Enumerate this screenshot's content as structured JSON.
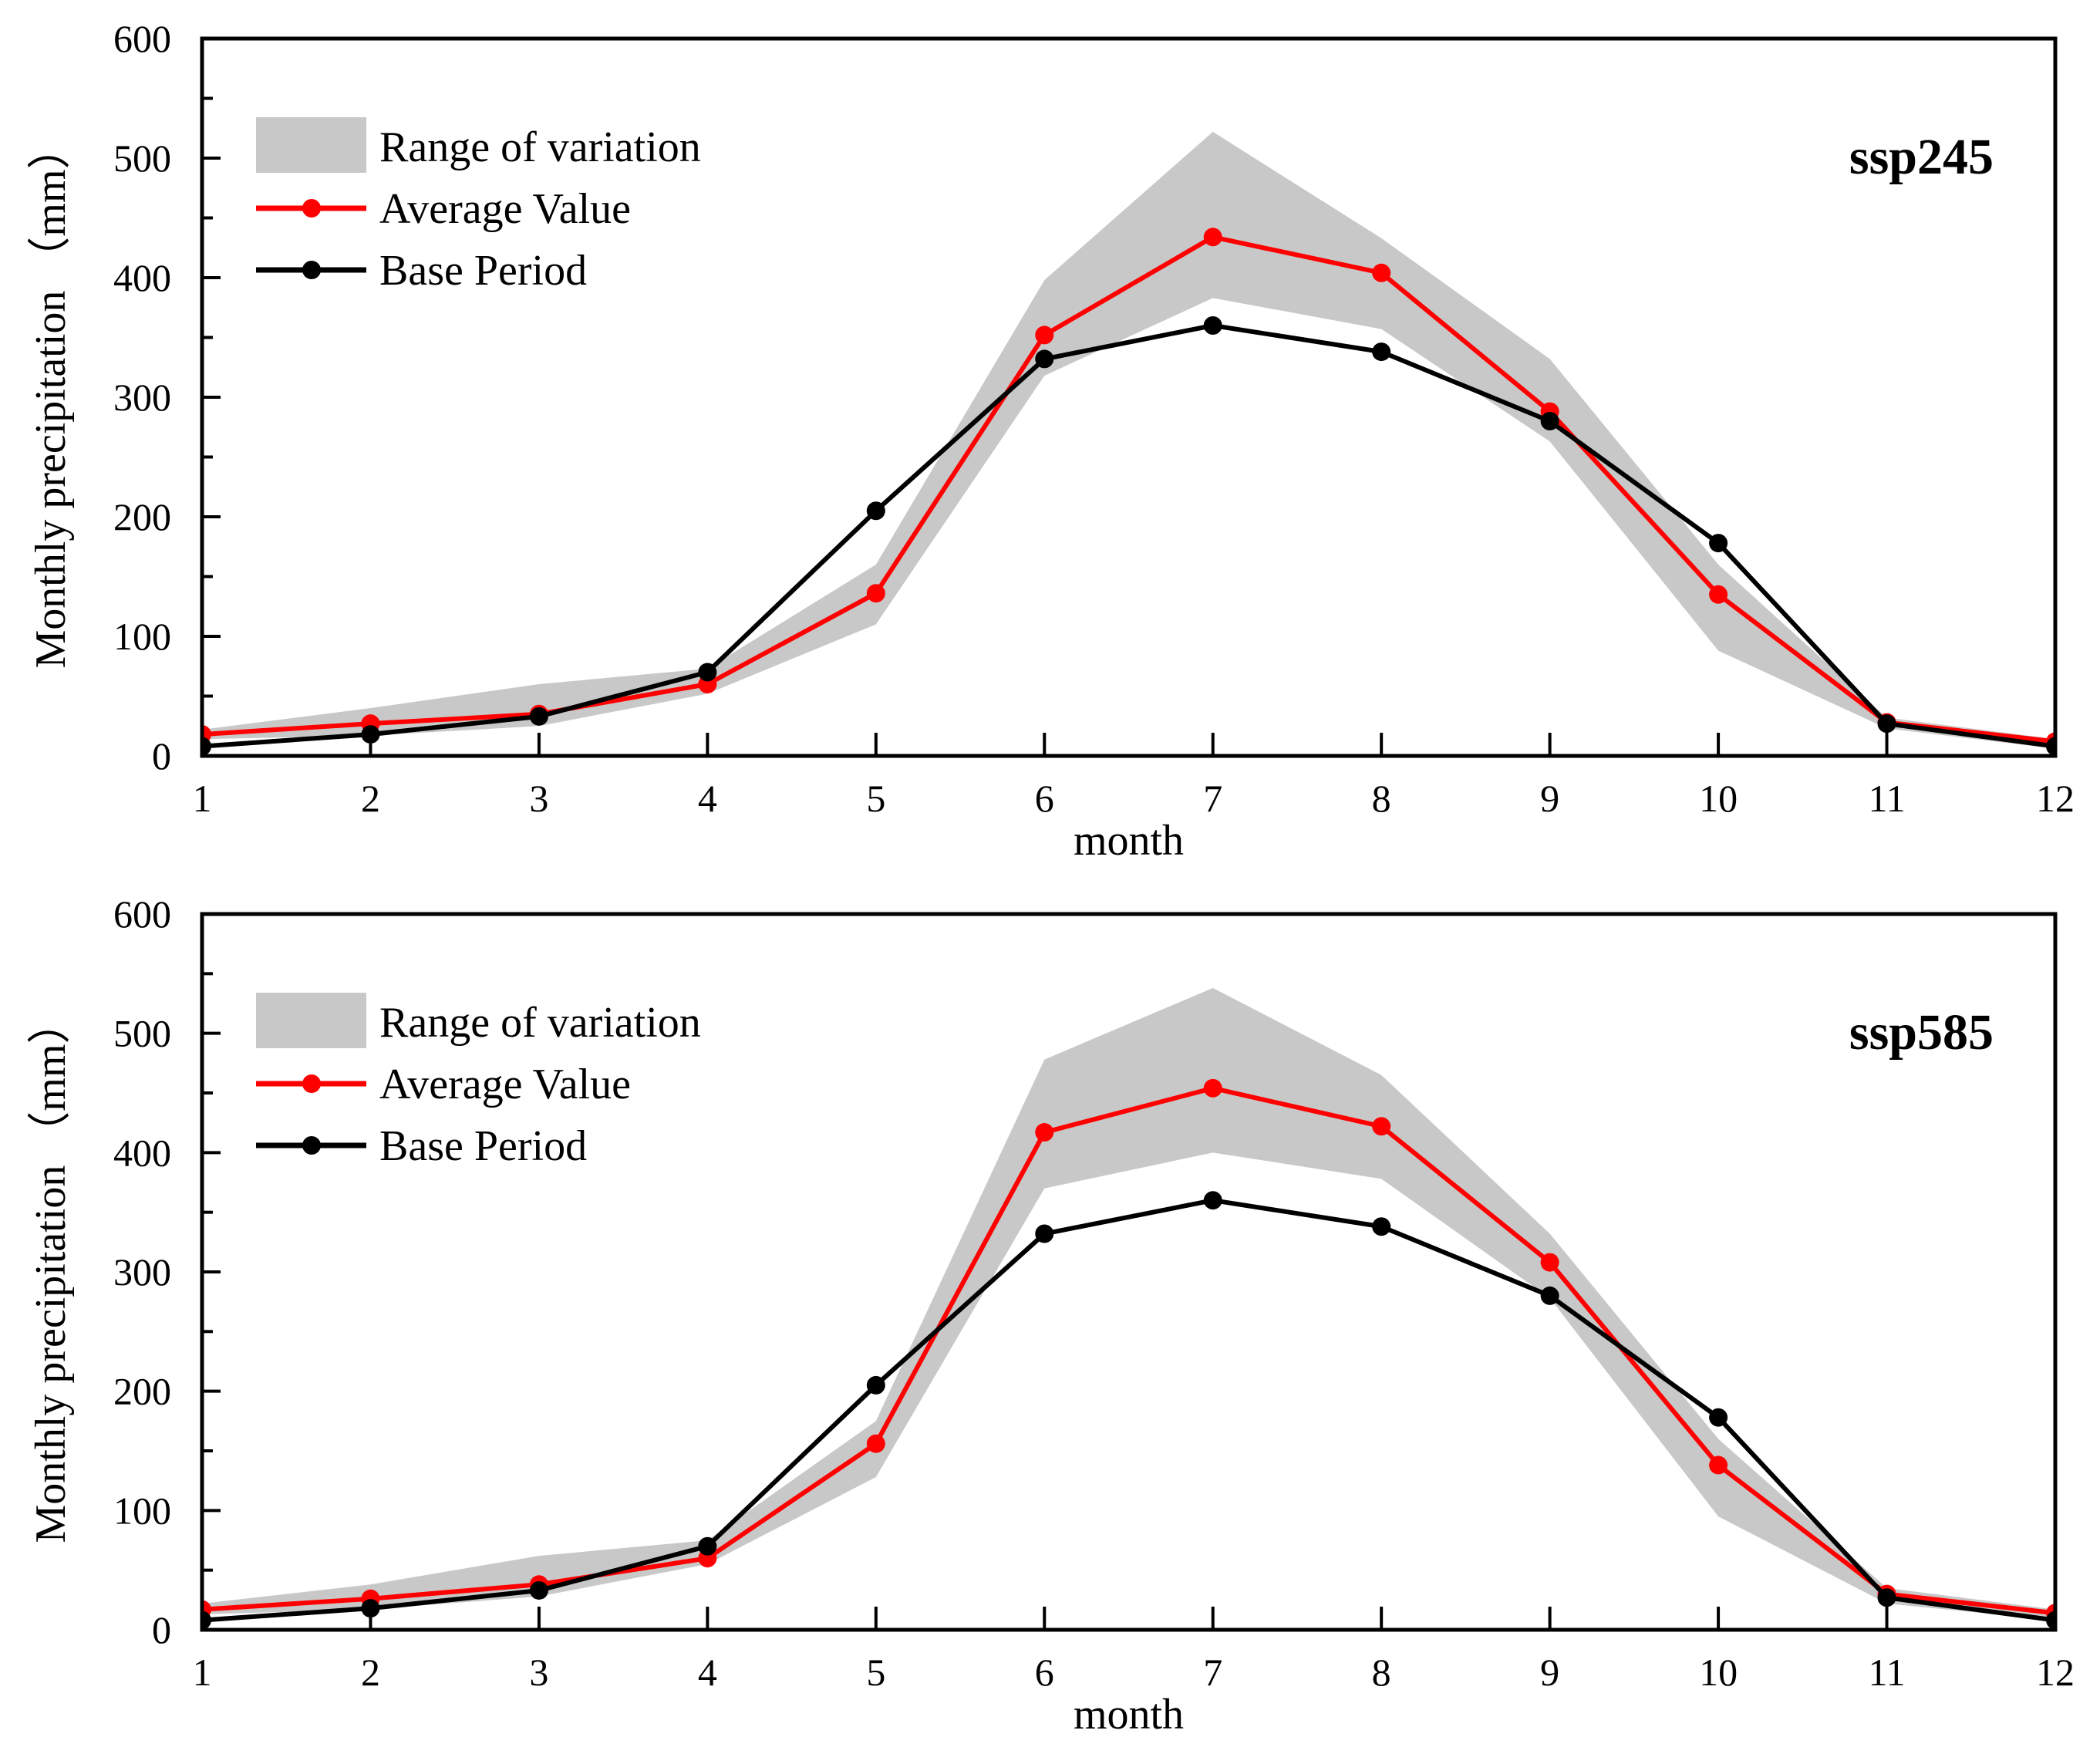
{
  "colors": {
    "band": "#c8c8c8",
    "average": "#ff0000",
    "base": "#000000",
    "frame": "#000000"
  },
  "chart_data": [
    {
      "type": "line",
      "panel_label": "ssp245",
      "xlabel": "month",
      "ylabel": "Monthly precipitation （mm）",
      "xlim": [
        1,
        12
      ],
      "ylim": [
        0,
        600
      ],
      "x_ticks": [
        "1",
        "2",
        "3",
        "4",
        "5",
        "6",
        "7",
        "8",
        "9",
        "10",
        "11",
        "12"
      ],
      "y_ticks": [
        "0",
        "100",
        "200",
        "300",
        "400",
        "500",
        "600"
      ],
      "legend": [
        "Range of variation",
        "Average Value",
        "Base Period"
      ],
      "legend_position": "top-left",
      "grid": false,
      "x": [
        1,
        2,
        3,
        4,
        5,
        6,
        7,
        8,
        9,
        10,
        11,
        12
      ],
      "band": {
        "name": "Range of variation",
        "upper": [
          22,
          40,
          60,
          73,
          160,
          398,
          522,
          433,
          332,
          160,
          32,
          14
        ],
        "lower": [
          14,
          17,
          25,
          52,
          110,
          318,
          383,
          357,
          263,
          88,
          23,
          6
        ]
      },
      "series": [
        {
          "name": "Average Value",
          "values": [
            18,
            27,
            35,
            60,
            136,
            352,
            434,
            404,
            288,
            135,
            28,
            12
          ]
        },
        {
          "name": "Base Period",
          "values": [
            8,
            18,
            33,
            70,
            205,
            332,
            360,
            338,
            280,
            178,
            27,
            8
          ]
        }
      ]
    },
    {
      "type": "line",
      "panel_label": "ssp585",
      "xlabel": "month",
      "ylabel": "Monthly precipitation （mm）",
      "xlim": [
        1,
        12
      ],
      "ylim": [
        0,
        600
      ],
      "x_ticks": [
        "1",
        "2",
        "3",
        "4",
        "5",
        "6",
        "7",
        "8",
        "9",
        "10",
        "11",
        "12"
      ],
      "y_ticks": [
        "0",
        "100",
        "200",
        "300",
        "400",
        "500",
        "600"
      ],
      "legend": [
        "Range of variation",
        "Average Value",
        "Base Period"
      ],
      "legend_position": "top-left",
      "grid": false,
      "x": [
        1,
        2,
        3,
        4,
        5,
        6,
        7,
        8,
        9,
        10,
        11,
        12
      ],
      "band": {
        "name": "Range of variation",
        "upper": [
          22,
          38,
          62,
          75,
          175,
          478,
          538,
          465,
          332,
          160,
          35,
          17
        ],
        "lower": [
          13,
          17,
          28,
          55,
          128,
          370,
          400,
          378,
          278,
          95,
          22,
          8
        ]
      },
      "series": [
        {
          "name": "Average Value",
          "values": [
            17,
            26,
            38,
            60,
            156,
            417,
            454,
            422,
            308,
            138,
            30,
            14
          ]
        },
        {
          "name": "Base Period",
          "values": [
            8,
            18,
            33,
            70,
            205,
            332,
            360,
            338,
            280,
            178,
            27,
            8
          ]
        }
      ]
    }
  ]
}
